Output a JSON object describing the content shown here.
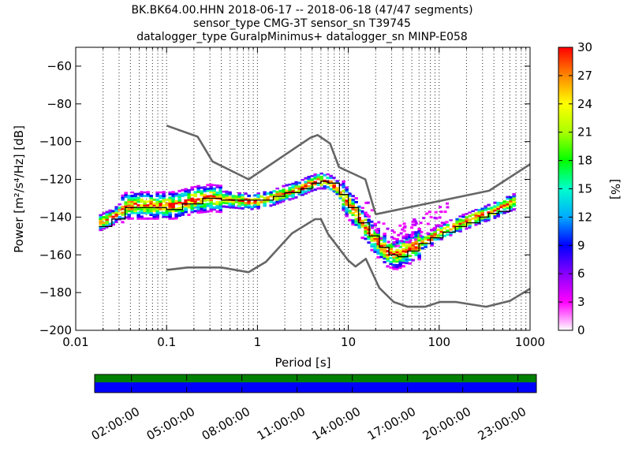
{
  "chart_data": {
    "type": "heatmap",
    "title_lines": [
      "BK.BK64.00.HHN   2018-06-17 -- 2018-06-18  (47/47 segments)",
      "sensor_type CMG-3T sensor_sn T39745",
      "datalogger_type GuralpMinimus+ datalogger_sn MINP-E058"
    ],
    "xlabel": "Period [s]",
    "ylabel": "Power [m²/s⁴/Hz] [dB]",
    "x_scale": "log",
    "xlim": [
      0.01,
      1000
    ],
    "ylim": [
      -200,
      -50
    ],
    "x_ticks": [
      {
        "value": 0.01,
        "label": "0.01"
      },
      {
        "value": 0.1,
        "label": "0.1"
      },
      {
        "value": 1,
        "label": "1"
      },
      {
        "value": 10,
        "label": "10"
      },
      {
        "value": 100,
        "label": "100"
      },
      {
        "value": 1000,
        "label": "1000"
      }
    ],
    "y_ticks": [
      {
        "value": -60,
        "label": "−60"
      },
      {
        "value": -80,
        "label": "−80"
      },
      {
        "value": -100,
        "label": "−100"
      },
      {
        "value": -120,
        "label": "−120"
      },
      {
        "value": -140,
        "label": "−140"
      },
      {
        "value": -160,
        "label": "−160"
      },
      {
        "value": -180,
        "label": "−180"
      },
      {
        "value": -200,
        "label": "−200"
      }
    ],
    "grid": "dotted vertical",
    "colorbar": {
      "label": "[%]",
      "range": [
        0,
        30
      ],
      "ticks": [
        "0",
        "3",
        "6",
        "9",
        "12",
        "15",
        "18",
        "21",
        "24",
        "27",
        "30"
      ],
      "colormap": [
        "#ffffff",
        "#ff00ff",
        "#8800ff",
        "#0000ff",
        "#00aaff",
        "#00ffcc",
        "#00ff00",
        "#aaff00",
        "#ffff00",
        "#ff8800",
        "#ff0000"
      ]
    },
    "noise_models": {
      "high_noise_model": [
        [
          0.1,
          -91.5
        ],
        [
          0.22,
          -97.4
        ],
        [
          0.32,
          -110.5
        ],
        [
          0.8,
          -120
        ],
        [
          3.8,
          -98
        ],
        [
          4.6,
          -96.5
        ],
        [
          6.3,
          -101
        ],
        [
          7.9,
          -113.5
        ],
        [
          15.4,
          -120
        ],
        [
          20,
          -138.5
        ],
        [
          354.8,
          -126
        ],
        [
          1000,
          -112
        ]
      ],
      "low_noise_model": [
        [
          0.1,
          -168
        ],
        [
          0.17,
          -166.7
        ],
        [
          0.4,
          -166.7
        ],
        [
          0.8,
          -169.2
        ],
        [
          1.24,
          -163.7
        ],
        [
          2.4,
          -148.6
        ],
        [
          4.3,
          -141.1
        ],
        [
          5.0,
          -141.1
        ],
        [
          6.0,
          -149
        ],
        [
          10,
          -163
        ],
        [
          12,
          -166.2
        ],
        [
          15.6,
          -162.1
        ],
        [
          21.9,
          -177.5
        ],
        [
          31.6,
          -185
        ],
        [
          45,
          -187.5
        ],
        [
          70,
          -187.5
        ],
        [
          101,
          -185
        ],
        [
          154,
          -185
        ],
        [
          328,
          -187.5
        ],
        [
          600,
          -184.4
        ],
        [
          1000,
          -178
        ]
      ]
    },
    "mode_curve": [
      [
        0.018,
        -145
      ],
      [
        0.025,
        -141
      ],
      [
        0.035,
        -135
      ],
      [
        0.05,
        -135
      ],
      [
        0.1,
        -136
      ],
      [
        0.15,
        -133
      ],
      [
        0.25,
        -130
      ],
      [
        0.4,
        -131
      ],
      [
        0.7,
        -131
      ],
      [
        1,
        -131
      ],
      [
        1.5,
        -129
      ],
      [
        2,
        -127
      ],
      [
        3,
        -125
      ],
      [
        4,
        -122
      ],
      [
        5,
        -121
      ],
      [
        6,
        -122
      ],
      [
        8,
        -128
      ],
      [
        10,
        -135
      ],
      [
        13,
        -143
      ],
      [
        17,
        -150
      ],
      [
        22,
        -156
      ],
      [
        28,
        -160
      ],
      [
        35,
        -161
      ],
      [
        45,
        -158
      ],
      [
        60,
        -154
      ],
      [
        80,
        -151
      ],
      [
        110,
        -148
      ],
      [
        150,
        -145
      ],
      [
        200,
        -143
      ],
      [
        280,
        -140
      ],
      [
        350,
        -138
      ],
      [
        450,
        -137
      ],
      [
        600,
        -134
      ]
    ],
    "psd_spread": [
      [
        0.018,
        -143
      ],
      [
        0.025,
        -140
      ],
      [
        0.035,
        -134
      ],
      [
        0.05,
        -134
      ],
      [
        0.08,
        -134
      ],
      [
        0.12,
        -134
      ],
      [
        0.2,
        -131
      ],
      [
        0.3,
        -130
      ],
      [
        0.5,
        -131
      ],
      [
        0.8,
        -132
      ],
      [
        1.2,
        -131
      ],
      [
        1.8,
        -128
      ],
      [
        2.5,
        -126
      ],
      [
        3.5,
        -123
      ],
      [
        4.5,
        -121
      ],
      [
        5.5,
        -121
      ],
      [
        7,
        -124
      ],
      [
        9,
        -131
      ],
      [
        12,
        -139
      ],
      [
        15,
        -146
      ],
      [
        20,
        -153
      ],
      [
        25,
        -158
      ],
      [
        32,
        -160
      ],
      [
        40,
        -158
      ],
      [
        55,
        -155
      ],
      [
        75,
        -152
      ],
      [
        100,
        -148
      ],
      [
        140,
        -145
      ],
      [
        200,
        -142
      ],
      [
        280,
        -139
      ],
      [
        380,
        -137
      ],
      [
        500,
        -134
      ],
      [
        650,
        -132
      ]
    ],
    "time_axis_labels": [
      "02:00:00",
      "05:00:00",
      "08:00:00",
      "11:00:00",
      "14:00:00",
      "17:00:00",
      "20:00:00",
      "23:00:00"
    ],
    "time_bar_colors": {
      "top": "#008000",
      "bottom": "#0000ff"
    }
  }
}
